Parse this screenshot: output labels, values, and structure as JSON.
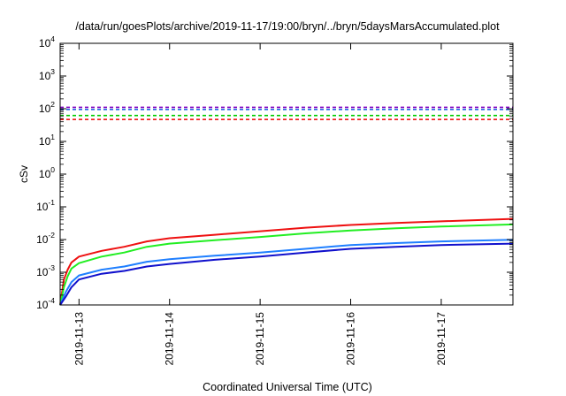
{
  "chart_data": {
    "type": "line",
    "title": "/data/run/goesPlots/archive/2019-11-17/19:00/bryn/../bryn/5daysMarsAccumulated.plot",
    "xlabel": "Coordinated Universal Time (UTC)",
    "ylabel": "cSv",
    "y_scale": "log",
    "ylim": [
      0.0001,
      10000
    ],
    "xlim": [
      "2019-11-12 19:00",
      "2019-11-17 19:00"
    ],
    "grid": false,
    "legend": "none",
    "y_ticks": [
      {
        "value": 0.0001,
        "base": "10",
        "exp": "-4"
      },
      {
        "value": 0.001,
        "base": "10",
        "exp": "-3"
      },
      {
        "value": 0.01,
        "base": "10",
        "exp": "-2"
      },
      {
        "value": 0.1,
        "base": "10",
        "exp": "-1"
      },
      {
        "value": 1,
        "base": "10",
        "exp": "0"
      },
      {
        "value": 10,
        "base": "10",
        "exp": "1"
      },
      {
        "value": 100,
        "base": "10",
        "exp": "2"
      },
      {
        "value": 1000,
        "base": "10",
        "exp": "3"
      },
      {
        "value": 10000,
        "base": "10",
        "exp": "4"
      }
    ],
    "x_ticks": [
      {
        "value": "2019-11-13 00:00",
        "label": "2019-11-13"
      },
      {
        "value": "2019-11-14 00:00",
        "label": "2019-11-14"
      },
      {
        "value": "2019-11-15 00:00",
        "label": "2019-11-15"
      },
      {
        "value": "2019-11-16 00:00",
        "label": "2019-11-16"
      },
      {
        "value": "2019-11-17 00:00",
        "label": "2019-11-17"
      }
    ],
    "reference_lines": [
      {
        "color": "#8000c0",
        "y": 110
      },
      {
        "color": "#2060e0",
        "y": 95
      },
      {
        "color": "#00cc00",
        "y": 62
      },
      {
        "color": "#ee0000",
        "y": 47
      }
    ],
    "series": [
      {
        "color": "#ee1111",
        "x": [
          "2019-11-12 19:00",
          "2019-11-12 20:00",
          "2019-11-12 21:00",
          "2019-11-12 22:00",
          "2019-11-13 00:00",
          "2019-11-13 06:00",
          "2019-11-13 12:00",
          "2019-11-13 18:00",
          "2019-11-14 00:00",
          "2019-11-14 12:00",
          "2019-11-15 00:00",
          "2019-11-15 12:00",
          "2019-11-16 00:00",
          "2019-11-16 12:00",
          "2019-11-17 00:00",
          "2019-11-17 19:00"
        ],
        "y": [
          0.0001,
          0.0006,
          0.0012,
          0.002,
          0.003,
          0.0045,
          0.006,
          0.0088,
          0.011,
          0.014,
          0.018,
          0.023,
          0.028,
          0.032,
          0.036,
          0.043
        ]
      },
      {
        "color": "#22ee22",
        "x": [
          "2019-11-12 19:00",
          "2019-11-12 20:00",
          "2019-11-12 21:00",
          "2019-11-12 22:00",
          "2019-11-13 00:00",
          "2019-11-13 06:00",
          "2019-11-13 12:00",
          "2019-11-13 18:00",
          "2019-11-14 00:00",
          "2019-11-14 12:00",
          "2019-11-15 00:00",
          "2019-11-15 12:00",
          "2019-11-16 00:00",
          "2019-11-16 12:00",
          "2019-11-17 00:00",
          "2019-11-17 19:00"
        ],
        "y": [
          0.0001,
          0.00035,
          0.00075,
          0.0013,
          0.0019,
          0.003,
          0.004,
          0.006,
          0.0075,
          0.0095,
          0.012,
          0.0155,
          0.019,
          0.022,
          0.025,
          0.029
        ]
      },
      {
        "color": "#1f7fff",
        "x": [
          "2019-11-12 19:00",
          "2019-11-12 20:30",
          "2019-11-12 22:00",
          "2019-11-13 00:00",
          "2019-11-13 06:00",
          "2019-11-13 12:00",
          "2019-11-13 18:00",
          "2019-11-14 00:00",
          "2019-11-14 12:00",
          "2019-11-15 00:00",
          "2019-11-15 12:00",
          "2019-11-16 00:00",
          "2019-11-16 12:00",
          "2019-11-17 00:00",
          "2019-11-17 19:00"
        ],
        "y": [
          0.0001,
          0.00025,
          0.0005,
          0.0008,
          0.0012,
          0.0015,
          0.0021,
          0.0025,
          0.0032,
          0.004,
          0.0052,
          0.0068,
          0.0078,
          0.0088,
          0.0098
        ]
      },
      {
        "color": "#1010cc",
        "x": [
          "2019-11-12 19:00",
          "2019-11-12 20:30",
          "2019-11-12 22:00",
          "2019-11-13 00:00",
          "2019-11-13 06:00",
          "2019-11-13 12:00",
          "2019-11-13 18:00",
          "2019-11-14 00:00",
          "2019-11-14 12:00",
          "2019-11-15 00:00",
          "2019-11-15 12:00",
          "2019-11-16 00:00",
          "2019-11-16 12:00",
          "2019-11-17 00:00",
          "2019-11-17 19:00"
        ],
        "y": [
          0.0001,
          0.00018,
          0.00035,
          0.0006,
          0.0009,
          0.0011,
          0.0015,
          0.0018,
          0.0024,
          0.003,
          0.004,
          0.0052,
          0.006,
          0.0068,
          0.0075
        ]
      }
    ]
  }
}
